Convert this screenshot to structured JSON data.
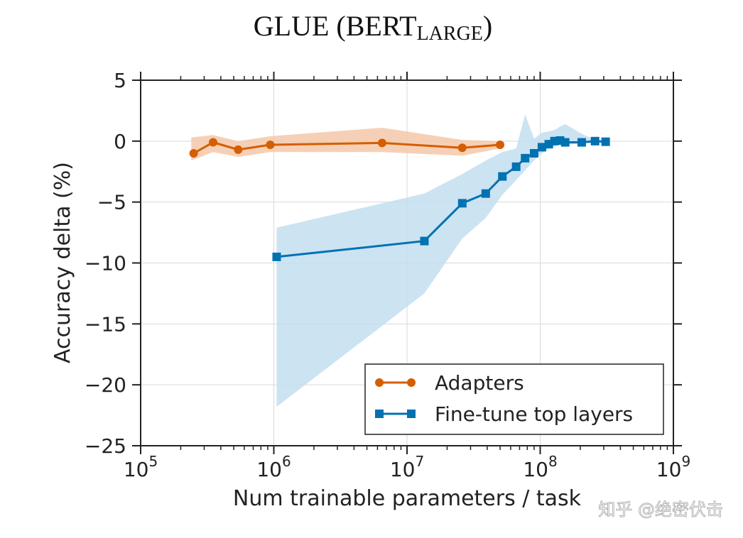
{
  "chart_data": {
    "type": "line",
    "title": "GLUE (BERT",
    "title_subscript": "LARGE",
    "title_suffix": ")",
    "xlabel": "Num trainable parameters / task",
    "ylabel": "Accuracy delta (%)",
    "xscale": "log",
    "xlim": [
      100000,
      1000000000
    ],
    "ylim": [
      -25,
      5
    ],
    "x_ticks": [
      {
        "value": 100000,
        "base": "10",
        "exp": "5"
      },
      {
        "value": 1000000,
        "base": "10",
        "exp": "6"
      },
      {
        "value": 10000000,
        "base": "10",
        "exp": "7"
      },
      {
        "value": 100000000,
        "base": "10",
        "exp": "8"
      },
      {
        "value": 1000000000,
        "base": "10",
        "exp": "9"
      }
    ],
    "y_ticks": [
      {
        "value": 5,
        "label": "5"
      },
      {
        "value": 0,
        "label": "0"
      },
      {
        "value": -5,
        "label": "−5"
      },
      {
        "value": -10,
        "label": "−10"
      },
      {
        "value": -15,
        "label": "−15"
      },
      {
        "value": -20,
        "label": "−20"
      },
      {
        "value": -25,
        "label": "−25"
      }
    ],
    "grid": true,
    "legend_position": "bottom-right",
    "series": [
      {
        "name": "Adapters",
        "color": "#D55E00",
        "band_color": "#F4C8A9",
        "marker": "circle",
        "x": [
          250000,
          350000,
          540000,
          940000,
          6500000,
          26000000,
          50000000
        ],
        "y": [
          -1.0,
          -0.1,
          -0.7,
          -0.3,
          -0.15,
          -0.55,
          -0.3
        ],
        "band_x": [
          240000,
          350000,
          540000,
          940000,
          6500000,
          26000000,
          50000000
        ],
        "band_upper": [
          0.3,
          0.5,
          0.0,
          0.4,
          1.1,
          0.1,
          0.0
        ],
        "band_lower": [
          -1.6,
          -0.9,
          -1.3,
          -0.9,
          -0.9,
          -1.2,
          -0.6
        ]
      },
      {
        "name": "Fine-tune top layers",
        "color": "#0072B2",
        "band_color": "#C3DEF0",
        "marker": "square",
        "x": [
          1050000,
          13500000,
          26000000,
          39000000,
          52000000,
          66000000,
          77000000,
          90000000,
          103000000,
          116000000,
          128000000,
          141000000,
          154000000,
          205000000,
          258000000,
          310000000
        ],
        "y": [
          -9.5,
          -8.2,
          -5.1,
          -4.3,
          -2.9,
          -2.1,
          -1.4,
          -1.0,
          -0.5,
          -0.25,
          0.0,
          0.05,
          -0.1,
          -0.1,
          0.0,
          -0.05
        ],
        "band_x": [
          1050000,
          13500000,
          26000000,
          39000000,
          52000000,
          66000000,
          77000000,
          90000000,
          103000000,
          116000000,
          128000000,
          141000000,
          154000000,
          205000000,
          258000000,
          310000000
        ],
        "band_upper": [
          -7.1,
          -4.3,
          -2.7,
          -1.6,
          -0.9,
          -0.6,
          2.2,
          0.2,
          0.7,
          0.8,
          0.9,
          1.2,
          1.4,
          0.6,
          0.1,
          0.1
        ],
        "band_lower": [
          -21.8,
          -12.5,
          -8.0,
          -6.3,
          -4.4,
          -3.2,
          -2.4,
          -1.6,
          -1.0,
          -0.6,
          -0.4,
          -0.2,
          -0.3,
          -0.2,
          -0.1,
          -0.1
        ]
      }
    ]
  },
  "watermark": {
    "text": "知乎 @绝密伏击"
  }
}
